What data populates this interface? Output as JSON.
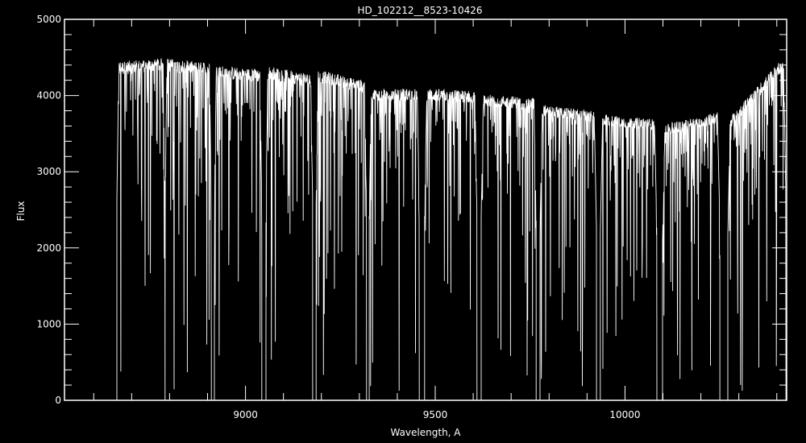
{
  "chart_data": {
    "type": "line",
    "title": "HD_102212__8523-10426",
    "xlabel": "Wavelength, A",
    "ylabel": "Flux",
    "xlim": [
      8523,
      10426
    ],
    "ylim": [
      0,
      5000
    ],
    "x_major_ticks": [
      9000,
      9500,
      10000
    ],
    "x_minor_step": 100,
    "y_major_ticks": [
      0,
      1000,
      2000,
      3000,
      4000,
      5000
    ],
    "y_minor_step": 200,
    "grid": false,
    "colors": {
      "background": "#000000",
      "foreground": "#ffffff"
    },
    "orders": [
      {
        "start": 8661,
        "end": 8788,
        "flux_start": 4400,
        "flux_end": 4450
      },
      {
        "start": 8788,
        "end": 8910,
        "flux_start": 4450,
        "flux_end": 4380
      },
      {
        "start": 8918,
        "end": 9043,
        "flux_start": 4350,
        "flux_end": 4300
      },
      {
        "start": 9054,
        "end": 9177,
        "flux_start": 4350,
        "flux_end": 4230
      },
      {
        "start": 9186,
        "end": 9319,
        "flux_start": 4300,
        "flux_end": 4150
      },
      {
        "start": 9326,
        "end": 9458,
        "flux_start": 4050,
        "flux_end": 4050
      },
      {
        "start": 9472,
        "end": 9610,
        "flux_start": 4050,
        "flux_end": 4020
      },
      {
        "start": 9621,
        "end": 9766,
        "flux_start": 3980,
        "flux_end": 3930
      },
      {
        "start": 9776,
        "end": 9925,
        "flux_start": 3850,
        "flux_end": 3750
      },
      {
        "start": 9935,
        "end": 10084,
        "flux_start": 3720,
        "flux_end": 3650
      },
      {
        "start": 10099,
        "end": 10250,
        "flux_start": 3580,
        "flux_end": 3750
      },
      {
        "start": 10271,
        "end": 10424,
        "flux_start": 3650,
        "flux_end": 4500
      }
    ]
  }
}
